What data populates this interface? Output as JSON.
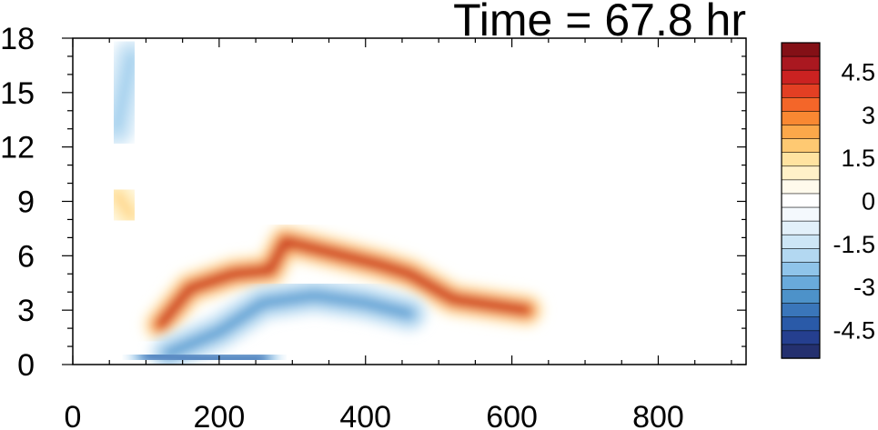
{
  "chart_data": {
    "type": "heatmap",
    "title": "Time = 67.8 hr",
    "xlabel": "",
    "ylabel": "",
    "xlim": [
      0,
      920
    ],
    "ylim": [
      0,
      18
    ],
    "x_ticks": [
      "0",
      "200",
      "400",
      "600",
      "800"
    ],
    "x_tick_values": [
      0,
      200,
      400,
      600,
      800
    ],
    "y_ticks": [
      "0",
      "3",
      "6",
      "9",
      "12",
      "15",
      "18"
    ],
    "y_tick_values": [
      0,
      3,
      6,
      9,
      12,
      15,
      18
    ],
    "colorbar": {
      "labels": [
        "4.5",
        "3",
        "1.5",
        "0",
        "-1.5",
        "-3",
        "-4.5"
      ],
      "label_values": [
        4.5,
        3,
        1.5,
        0,
        -1.5,
        -3,
        -4.5
      ],
      "levels": [
        -5.5,
        -5,
        -4.5,
        -4,
        -3.5,
        -3,
        -2.5,
        -2,
        -1.5,
        -1,
        -0.5,
        0,
        0.5,
        1,
        1.5,
        2,
        2.5,
        3,
        3.5,
        4,
        4.5,
        5,
        5.5
      ],
      "colors": [
        "#24306f",
        "#253f8f",
        "#2a5aa8",
        "#3a76ba",
        "#4d92c9",
        "#69aadb",
        "#8fc4ea",
        "#b3d8f1",
        "#cde6f6",
        "#e2f0fa",
        "#f4f9fd",
        "#ffffff",
        "#fffaec",
        "#fff1c8",
        "#ffe3a0",
        "#fec972",
        "#fca84a",
        "#f98832",
        "#f46629",
        "#e33f23",
        "#cb2221",
        "#aa1820",
        "#841016"
      ]
    },
    "features": [
      {
        "name": "main positive band",
        "points": [
          [
            120,
            2.2
          ],
          [
            160,
            4.2
          ],
          [
            220,
            5.0
          ],
          [
            270,
            5.2
          ],
          [
            290,
            6.8
          ],
          [
            350,
            6.2
          ],
          [
            420,
            5.5
          ],
          [
            460,
            5.0
          ],
          [
            520,
            3.6
          ],
          [
            620,
            3.0
          ]
        ],
        "peak": 5.0
      },
      {
        "name": "negative band below",
        "points": [
          [
            130,
            0.6
          ],
          [
            200,
            1.8
          ],
          [
            260,
            3.4
          ],
          [
            330,
            3.8
          ],
          [
            400,
            3.4
          ],
          [
            460,
            2.8
          ]
        ],
        "peak": -3.5
      },
      {
        "name": "surface negative",
        "points": [
          [
            100,
            0.5
          ],
          [
            140,
            0.4
          ],
          [
            180,
            0.3
          ],
          [
            260,
            0.3
          ]
        ],
        "peak": -4.5
      },
      {
        "name": "upper negative column",
        "points": [
          [
            60,
            13
          ],
          [
            70,
            15
          ],
          [
            80,
            17
          ]
        ],
        "peak": -2.2
      },
      {
        "name": "upper positive patch",
        "points": [
          [
            60,
            9.4
          ],
          [
            80,
            8.2
          ]
        ],
        "peak": 2.0
      }
    ]
  }
}
